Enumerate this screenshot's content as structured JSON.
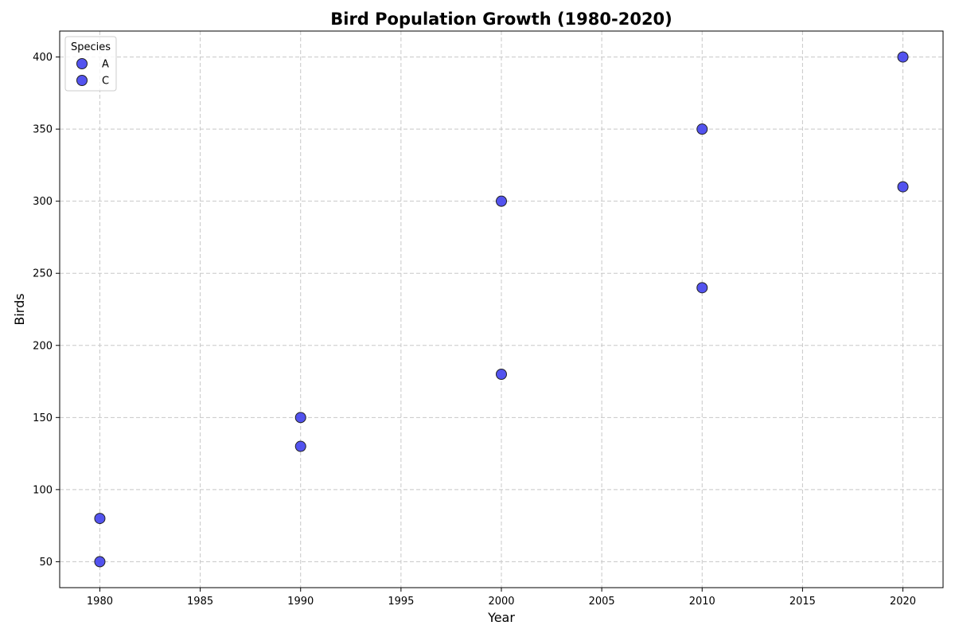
{
  "chart_data": {
    "type": "scatter",
    "title": "Bird Population Growth (1980-2020)",
    "xlabel": "Year",
    "ylabel": "Birds",
    "xlim": [
      1978,
      2022
    ],
    "ylim": [
      32,
      418
    ],
    "xticks": [
      1980,
      1985,
      1990,
      1995,
      2000,
      2005,
      2010,
      2015,
      2020
    ],
    "yticks": [
      50,
      100,
      150,
      200,
      250,
      300,
      350,
      400
    ],
    "grid": true,
    "legend": {
      "title": "Species",
      "placement": "top-left"
    },
    "marker_color": "#4444ee",
    "marker_edge_color": "#222222",
    "series": [
      {
        "name": "A",
        "x": [
          1980,
          1990,
          2000,
          2010,
          2020
        ],
        "y": [
          50,
          130,
          180,
          240,
          310
        ]
      },
      {
        "name": "C",
        "x": [
          1980,
          1990,
          2000,
          2010,
          2020
        ],
        "y": [
          80,
          150,
          300,
          350,
          400
        ]
      }
    ]
  }
}
